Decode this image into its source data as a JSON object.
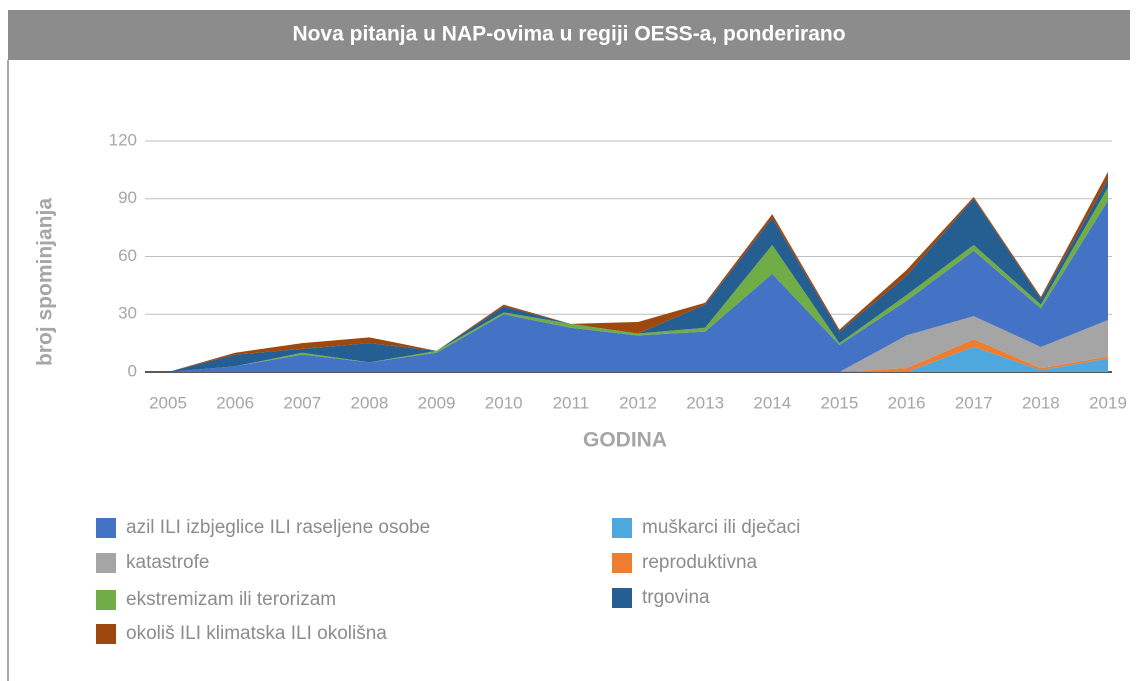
{
  "chart_data": {
    "type": "stacked_area",
    "title": "Nova pitanja u NAP-ovima u regiji OESS-a, ponderirano",
    "x_label": "GODINA",
    "y_label": "broj spominjanja",
    "categories": [
      "2005",
      "2006",
      "2007",
      "2008",
      "2009",
      "2010",
      "2011",
      "2012",
      "2013",
      "2014",
      "2015",
      "2016",
      "2017",
      "2018",
      "2019"
    ],
    "ylim": [
      0,
      120
    ],
    "yticks": [
      0,
      30,
      60,
      90,
      120
    ],
    "grid": true,
    "series": [
      {
        "name": "muškarci ili dječaci",
        "color": "#4ea8de",
        "values": [
          0,
          0,
          0,
          0,
          0,
          0,
          0,
          0,
          0,
          0,
          0,
          0,
          13,
          1,
          7
        ]
      },
      {
        "name": "reproduktivna",
        "color": "#ed7d31",
        "values": [
          0,
          0,
          0,
          0,
          0,
          0,
          0,
          0,
          0,
          0,
          0,
          2,
          4,
          1,
          1
        ]
      },
      {
        "name": "katastrofe",
        "color": "#a5a5a5",
        "values": [
          0,
          0,
          0,
          0,
          0,
          0,
          0,
          0,
          0,
          0,
          0,
          17,
          12,
          11,
          19
        ]
      },
      {
        "name": "azil ILI izbjeglice ILI raseljene osobe",
        "color": "#4472c4",
        "values": [
          0,
          3,
          9,
          5,
          10,
          30,
          23,
          19,
          21,
          51,
          14,
          18,
          34,
          20,
          62
        ]
      },
      {
        "name": "ekstremizam ili terorizam",
        "color": "#70ad47",
        "values": [
          0,
          0,
          1,
          0,
          1,
          1,
          2,
          1,
          2,
          15,
          1,
          3,
          3,
          2,
          7
        ]
      },
      {
        "name": "trgovina",
        "color": "#255e91",
        "values": [
          0,
          6,
          2,
          10,
          0,
          3,
          0,
          0,
          12,
          14,
          6,
          10,
          24,
          3,
          4
        ]
      },
      {
        "name": "okoliš ILI klimatska ILI okolišna",
        "color": "#9e480e",
        "values": [
          0,
          1,
          3,
          3,
          0,
          1,
          0,
          6,
          1,
          2,
          1,
          3,
          1,
          1,
          4
        ]
      }
    ]
  }
}
